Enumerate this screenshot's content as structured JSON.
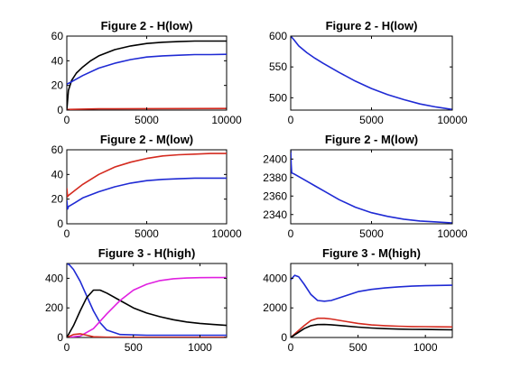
{
  "chart_data": [
    {
      "type": "line",
      "title": "Figure 2 - H(low)",
      "xlim": [
        0,
        10000
      ],
      "ylim": [
        0,
        60
      ],
      "xticks": [
        "0",
        "5000",
        "10000"
      ],
      "yticks": [
        "0",
        "20",
        "40",
        "60"
      ],
      "series": [
        {
          "color": "#000000",
          "x": [
            0,
            100,
            300,
            600,
            1000,
            1500,
            2000,
            3000,
            4000,
            5000,
            6000,
            7000,
            8000,
            9000,
            10000
          ],
          "y": [
            0,
            16,
            24,
            30,
            35,
            40,
            44,
            49,
            52,
            54,
            55,
            55.5,
            56,
            56,
            56
          ]
        },
        {
          "color": "#1f2ad4",
          "x": [
            0,
            300,
            1000,
            2000,
            3000,
            4000,
            5000,
            6000,
            7000,
            8000,
            9000,
            10000
          ],
          "y": [
            21,
            23,
            28,
            34,
            38,
            41,
            43,
            44,
            44.5,
            45,
            45,
            45.2
          ]
        },
        {
          "color": "#d42a1f",
          "x": [
            0,
            2000,
            5000,
            10000
          ],
          "y": [
            0.5,
            1,
            1.2,
            1.3
          ]
        }
      ]
    },
    {
      "type": "line",
      "title": "Figure 2 - H(low)",
      "xlim": [
        0,
        10000
      ],
      "ylim": [
        480,
        600
      ],
      "xticks": [
        "0",
        "5000",
        "10000"
      ],
      "yticks": [
        "500",
        "550",
        "600"
      ],
      "series": [
        {
          "color": "#1f2ad4",
          "x": [
            0,
            200,
            500,
            1000,
            1500,
            2000,
            3000,
            4000,
            5000,
            6000,
            7000,
            8000,
            9000,
            10000
          ],
          "y": [
            600,
            594,
            584,
            573,
            564,
            556,
            541,
            527,
            515,
            505,
            497,
            490,
            485,
            481
          ]
        }
      ]
    },
    {
      "type": "line",
      "title": "Figure 2 - M(low)",
      "xlim": [
        0,
        10000
      ],
      "ylim": [
        0,
        60
      ],
      "xticks": [
        "0",
        "5000",
        "10000"
      ],
      "yticks": [
        "0",
        "20",
        "40",
        "60"
      ],
      "series": [
        {
          "color": "#d42a1f",
          "x": [
            0,
            50,
            100,
            500,
            1000,
            2000,
            3000,
            4000,
            5000,
            6000,
            7000,
            8000,
            9000,
            10000
          ],
          "y": [
            29,
            22,
            23,
            27,
            32,
            40,
            46,
            50,
            53,
            55,
            56,
            56.5,
            57,
            57
          ]
        },
        {
          "color": "#1f2ad4",
          "x": [
            0,
            50,
            100,
            500,
            1000,
            2000,
            3000,
            4000,
            5000,
            6000,
            7000,
            8000,
            9000,
            10000
          ],
          "y": [
            19,
            12,
            14,
            17,
            21,
            26,
            30,
            33,
            35,
            36,
            36.5,
            37,
            37,
            37
          ]
        }
      ]
    },
    {
      "type": "line",
      "title": "Figure 2 - M(low)",
      "xlim": [
        0,
        10000
      ],
      "ylim": [
        2330,
        2410
      ],
      "xticks": [
        "0",
        "5000",
        "10000"
      ],
      "yticks": [
        "2340",
        "2360",
        "2380",
        "2400"
      ],
      "series": [
        {
          "color": "#1f2ad4",
          "x": [
            0,
            30,
            60,
            200,
            500,
            1000,
            1500,
            2000,
            3000,
            4000,
            5000,
            6000,
            7000,
            8000,
            9000,
            10000
          ],
          "y": [
            2410,
            2395,
            2385,
            2384,
            2381,
            2376,
            2371,
            2366,
            2356,
            2348,
            2342,
            2338,
            2335,
            2333,
            2332,
            2331
          ]
        }
      ]
    },
    {
      "type": "line",
      "title": "Figure 3 - H(high)",
      "xlim": [
        0,
        1200
      ],
      "ylim": [
        0,
        500
      ],
      "xticks": [
        "0",
        "500",
        "1000"
      ],
      "yticks": [
        "0",
        "200",
        "400"
      ],
      "series": [
        {
          "color": "#1f2ad4",
          "x": [
            0,
            20,
            50,
            100,
            150,
            200,
            250,
            300,
            400,
            600,
            800,
            1000,
            1200
          ],
          "y": [
            500,
            490,
            460,
            380,
            280,
            180,
            100,
            50,
            20,
            15,
            15,
            15,
            15
          ]
        },
        {
          "color": "#000000",
          "x": [
            0,
            50,
            100,
            150,
            200,
            250,
            300,
            400,
            500,
            600,
            700,
            800,
            900,
            1000,
            1100,
            1200
          ],
          "y": [
            0,
            80,
            180,
            270,
            320,
            320,
            300,
            250,
            200,
            165,
            140,
            120,
            105,
            95,
            88,
            82
          ]
        },
        {
          "color": "#e020e0",
          "x": [
            0,
            100,
            200,
            300,
            400,
            500,
            600,
            700,
            800,
            900,
            1000,
            1100,
            1200
          ],
          "y": [
            0,
            10,
            60,
            160,
            250,
            320,
            360,
            385,
            397,
            402,
            404,
            405,
            405
          ]
        },
        {
          "color": "#d42a1f",
          "x": [
            0,
            50,
            100,
            150,
            200,
            300,
            500,
            800,
            1200
          ],
          "y": [
            0,
            20,
            25,
            15,
            5,
            2,
            1,
            1,
            1
          ]
        }
      ]
    },
    {
      "type": "line",
      "title": "Figure 3 - M(high)",
      "xlim": [
        0,
        1200
      ],
      "ylim": [
        0,
        5000
      ],
      "xticks": [
        "0",
        "500",
        "1000"
      ],
      "yticks": [
        "0",
        "2000",
        "4000"
      ],
      "series": [
        {
          "color": "#1f2ad4",
          "x": [
            0,
            30,
            60,
            100,
            150,
            200,
            250,
            300,
            400,
            500,
            600,
            700,
            800,
            900,
            1000,
            1100,
            1200
          ],
          "y": [
            3900,
            4200,
            4100,
            3600,
            2900,
            2500,
            2450,
            2500,
            2800,
            3100,
            3250,
            3350,
            3420,
            3470,
            3500,
            3520,
            3530
          ]
        },
        {
          "color": "#d42a1f",
          "x": [
            0,
            50,
            100,
            150,
            200,
            250,
            300,
            400,
            500,
            600,
            700,
            800,
            900,
            1000,
            1100,
            1200
          ],
          "y": [
            0,
            400,
            800,
            1150,
            1300,
            1300,
            1250,
            1100,
            950,
            850,
            800,
            760,
            740,
            730,
            720,
            715
          ]
        },
        {
          "color": "#000000",
          "x": [
            0,
            50,
            100,
            150,
            200,
            250,
            300,
            400,
            500,
            600,
            700,
            800,
            900,
            1000,
            1100,
            1200
          ],
          "y": [
            0,
            300,
            600,
            800,
            870,
            880,
            860,
            780,
            700,
            640,
            600,
            570,
            550,
            540,
            530,
            520
          ]
        }
      ]
    }
  ]
}
